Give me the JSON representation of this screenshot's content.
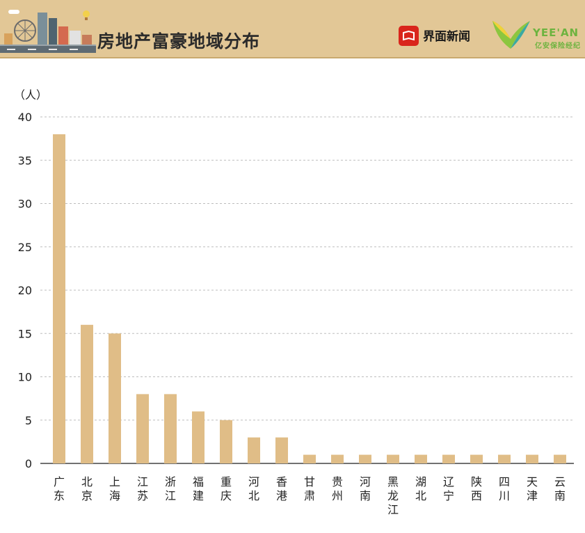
{
  "header": {
    "title": "房地产富豪地域分布",
    "publisher": "界面新闻",
    "partner_brand": "YEE'AN",
    "partner_name": "亿安保险经纪"
  },
  "chart_data": {
    "type": "bar",
    "title": "房地产富豪地域分布",
    "ylabel": "（人）",
    "xlabel": "",
    "ylim": [
      0,
      40
    ],
    "yticks": [
      0,
      5,
      10,
      15,
      20,
      25,
      30,
      35,
      40
    ],
    "grid": true,
    "legend": "none",
    "categories": [
      "广东",
      "北京",
      "上海",
      "江苏",
      "浙江",
      "福建",
      "重庆",
      "河北",
      "香港",
      "甘肃",
      "贵州",
      "河南",
      "黑龙江",
      "湖北",
      "辽宁",
      "陕西",
      "四川",
      "天津",
      "云南"
    ],
    "values": [
      38,
      16,
      15,
      8,
      8,
      6,
      5,
      3,
      3,
      1,
      1,
      1,
      1,
      1,
      1,
      1,
      1,
      1,
      1
    ],
    "bar_color": "#e0bd87"
  }
}
